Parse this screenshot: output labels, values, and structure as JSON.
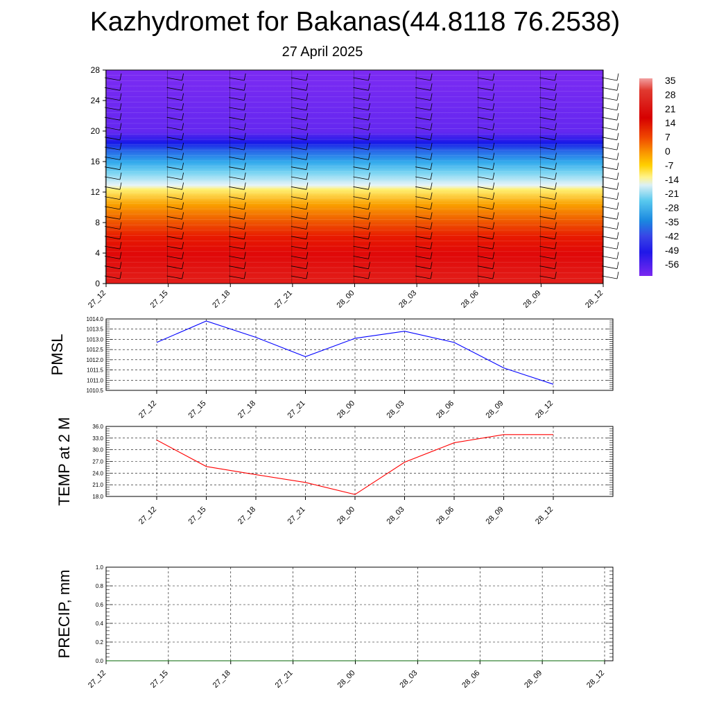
{
  "title": "Kazhydromet for Bakanas(44.8118 76.2538)",
  "subtitle": "27 April 2025",
  "colorbar": {
    "labels": [
      "35",
      "28",
      "21",
      "14",
      "7",
      "0",
      "-7",
      "-14",
      "-21",
      "-28",
      "-35",
      "-42",
      "-49",
      "-56"
    ]
  },
  "chart_data": [
    {
      "type": "heatmap",
      "name": "temperature cross-section with wind barbs",
      "y_ticks": [
        0,
        4,
        8,
        12,
        16,
        20,
        24,
        28
      ],
      "ylim": [
        0,
        28
      ],
      "x_ticks": [
        "27_12",
        "27_15",
        "27_18",
        "27_21",
        "28_00",
        "28_03",
        "28_06",
        "28_09",
        "28_12"
      ],
      "color_levels": [
        35,
        28,
        21,
        14,
        7,
        0,
        -7,
        -14,
        -21,
        -28,
        -35,
        -42,
        -49,
        -56
      ],
      "bands": [
        {
          "from": 0,
          "to": 5,
          "value": 30
        },
        {
          "from": 5,
          "to": 8,
          "value": 21
        },
        {
          "from": 8,
          "to": 10.5,
          "value": 10
        },
        {
          "from": 10.5,
          "to": 12.8,
          "value": 2
        },
        {
          "from": 12.8,
          "to": 14,
          "value": -14
        },
        {
          "from": 14,
          "to": 16,
          "value": -28
        },
        {
          "from": 16,
          "to": 18,
          "value": -42
        },
        {
          "from": 18,
          "to": 20,
          "value": -56
        },
        {
          "from": 20,
          "to": 28,
          "value": -60
        }
      ]
    },
    {
      "type": "line",
      "ylabel": "PMSL",
      "x": [
        "27_12",
        "27_15",
        "27_18",
        "27_21",
        "28_00",
        "28_03",
        "28_06",
        "28_09",
        "28_12"
      ],
      "y_ticks": [
        "1014.0",
        "1013.5",
        "1013.0",
        "1012.5",
        "1012.0",
        "1011.5",
        "1011.0",
        "1010.5"
      ],
      "ylim": [
        1010.5,
        1014.0
      ],
      "series": [
        {
          "values": [
            1012.85,
            1013.9,
            1013.1,
            1012.15,
            1013.05,
            1013.4,
            1012.85,
            1011.6,
            1010.8
          ],
          "color": "#0000ff"
        }
      ],
      "grid": true
    },
    {
      "type": "line",
      "ylabel": "TEMP at 2 M",
      "x": [
        "27_12",
        "27_15",
        "27_18",
        "27_21",
        "28_00",
        "28_03",
        "28_06",
        "28_09",
        "28_12"
      ],
      "y_ticks": [
        "36.0",
        "33.0",
        "30.0",
        "27.0",
        "24.0",
        "21.0",
        "18.0"
      ],
      "ylim": [
        18.0,
        36.0
      ],
      "series": [
        {
          "values": [
            32.5,
            25.7,
            23.6,
            21.6,
            18.5,
            26.8,
            31.8,
            33.9,
            33.9
          ],
          "color": "#ff0000"
        }
      ],
      "grid": true
    },
    {
      "type": "line",
      "ylabel": "PRECIP, mm",
      "x": [
        "27_12",
        "27_15",
        "27_18",
        "27_21",
        "28_00",
        "28_03",
        "28_06",
        "28_09",
        "28_12"
      ],
      "y_ticks": [
        "0.0",
        "0.2",
        "0.4",
        "0.6",
        "0.8",
        "1.0"
      ],
      "ylim": [
        0.0,
        1.0
      ],
      "series": [
        {
          "values": [
            0,
            0,
            0,
            0,
            0,
            0,
            0,
            0,
            0
          ],
          "color": "#006400"
        }
      ],
      "grid": true
    }
  ]
}
